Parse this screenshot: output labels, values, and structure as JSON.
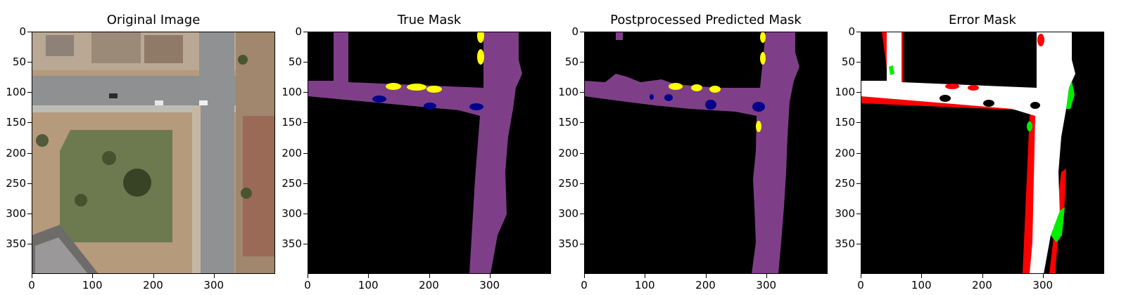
{
  "panels": [
    {
      "title": "Original Image"
    },
    {
      "title": "True Mask"
    },
    {
      "title": "Postprocessed Predicted Mask"
    },
    {
      "title": "Error Mask"
    }
  ],
  "axes": {
    "y_ticks": [
      "0",
      "50",
      "100",
      "150",
      "200",
      "250",
      "300",
      "350"
    ],
    "x_ticks": [
      "0",
      "100",
      "200",
      "300"
    ]
  },
  "colors": {
    "road": "#7e3f88",
    "car": "#00008b",
    "pedestrian": "#ffff00",
    "background": "#000000",
    "error_fp": "#ff0000",
    "error_fn": "#00ee00",
    "correct": "#ffffff"
  }
}
